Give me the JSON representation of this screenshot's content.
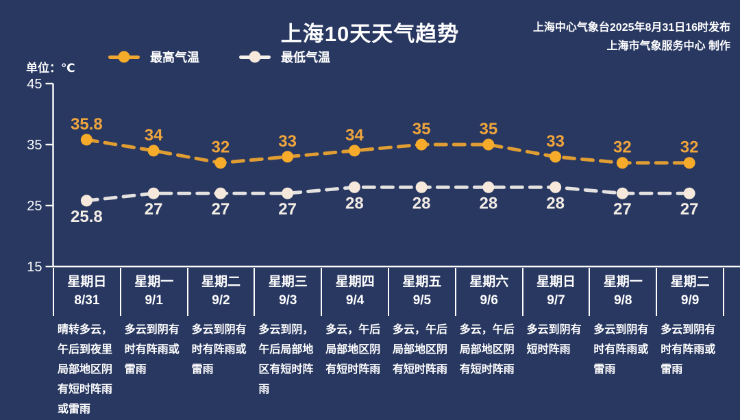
{
  "header": {
    "title": "上海10天天气趋势",
    "issued_by": "上海中心气象台2025年8月31日16时发布",
    "produced_by": "上海市气象服务中心 制作"
  },
  "axis": {
    "unit_label": "单位：℃"
  },
  "colors": {
    "background": "#293861",
    "axis": "#FFFFFF",
    "high_accent": "#F0A62F",
    "low_accent": "#F4F1EC"
  },
  "chart_data": {
    "type": "line",
    "title": "上海10天天气趋势",
    "unit": "℃",
    "line_style": "dashed",
    "grid": false,
    "legend_position": "top-left",
    "ylim": [
      15,
      45
    ],
    "yticks": [
      45,
      35,
      25,
      15
    ],
    "x_categories": [
      {
        "weekday": "星期日",
        "date": "8/31"
      },
      {
        "weekday": "星期一",
        "date": "9/1"
      },
      {
        "weekday": "星期二",
        "date": "9/2"
      },
      {
        "weekday": "星期三",
        "date": "9/3"
      },
      {
        "weekday": "星期四",
        "date": "9/4"
      },
      {
        "weekday": "星期五",
        "date": "9/5"
      },
      {
        "weekday": "星期六",
        "date": "9/6"
      },
      {
        "weekday": "星期日",
        "date": "9/7"
      },
      {
        "weekday": "星期一",
        "date": "9/8"
      },
      {
        "weekday": "星期二",
        "date": "9/9"
      }
    ],
    "series": [
      {
        "name": "最高气温",
        "color": "#F0A62F",
        "point_color": "#F7AB2B",
        "value_label_color": "#EFA53C",
        "values": [
          35.8,
          34,
          32,
          33,
          34,
          35,
          35,
          33,
          32,
          32
        ]
      },
      {
        "name": "最低气温",
        "color": "#F4F1EC",
        "point_color": "#F6E9DC",
        "value_label_color": "#F3EDE6",
        "values": [
          25.8,
          27,
          27,
          27,
          28,
          28,
          28,
          28,
          27,
          27
        ]
      }
    ],
    "descriptions": [
      "晴转多云，午后到夜里局部地区阴有短时阵雨或雷雨",
      "多云到阴有时有阵雨或雷雨",
      "多云到阴有时有阵雨或雷雨",
      "多云到阴，午后局部地区有短时阵雨",
      "多云，午后局部地区阴有短时阵雨",
      "多云，午后局部地区阴有短时阵雨",
      "多云，午后局部地区阴有短时阵雨",
      "多云到阴有短时阵雨",
      "多云到阴有时有阵雨或雷雨",
      "多云到阴有时有阵雨或雷雨"
    ]
  }
}
